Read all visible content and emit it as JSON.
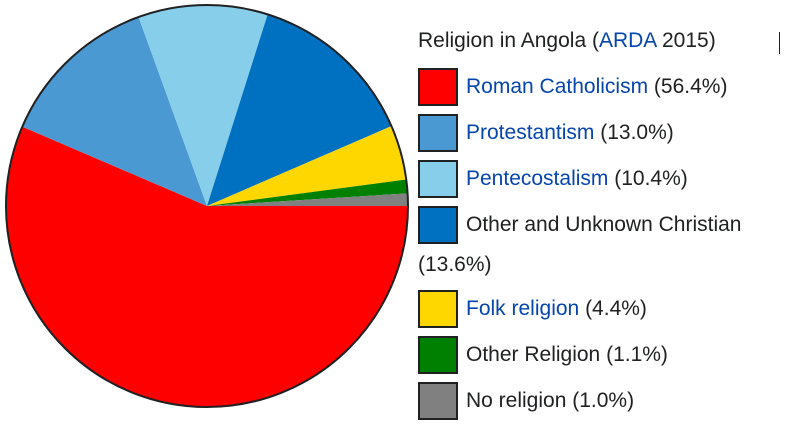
{
  "legend": {
    "title_prefix": "Religion in Angola (",
    "title_link": "ARDA",
    "title_suffix": " 2015)"
  },
  "chart_data": {
    "type": "pie",
    "title": "Religion in Angola (ARDA 2015)",
    "slices": [
      {
        "label": "Roman Catholicism",
        "value": 56.4,
        "color": "#ff0000",
        "is_link": true
      },
      {
        "label": "Protestantism",
        "value": 13.0,
        "color": "#4b99d3",
        "is_link": true
      },
      {
        "label": "Pentecostalism",
        "value": 10.4,
        "color": "#87ceeb",
        "is_link": true
      },
      {
        "label": "Other and Unknown Christian",
        "value": 13.6,
        "color": "#0070c0",
        "is_link": false
      },
      {
        "label": "Folk religion",
        "value": 4.4,
        "color": "#ffd700",
        "is_link": true
      },
      {
        "label": "Other Religion",
        "value": 1.1,
        "color": "#008000",
        "is_link": false
      },
      {
        "label": "No religion",
        "value": 1.0,
        "color": "#808080",
        "is_link": false
      }
    ],
    "value_texts": [
      "(56.4%)",
      "(13.0%)",
      "(10.4%)",
      "(13.6%)",
      "(4.4%)",
      "(1.1%)",
      "(1.0%)"
    ],
    "legend_placement": "right"
  }
}
